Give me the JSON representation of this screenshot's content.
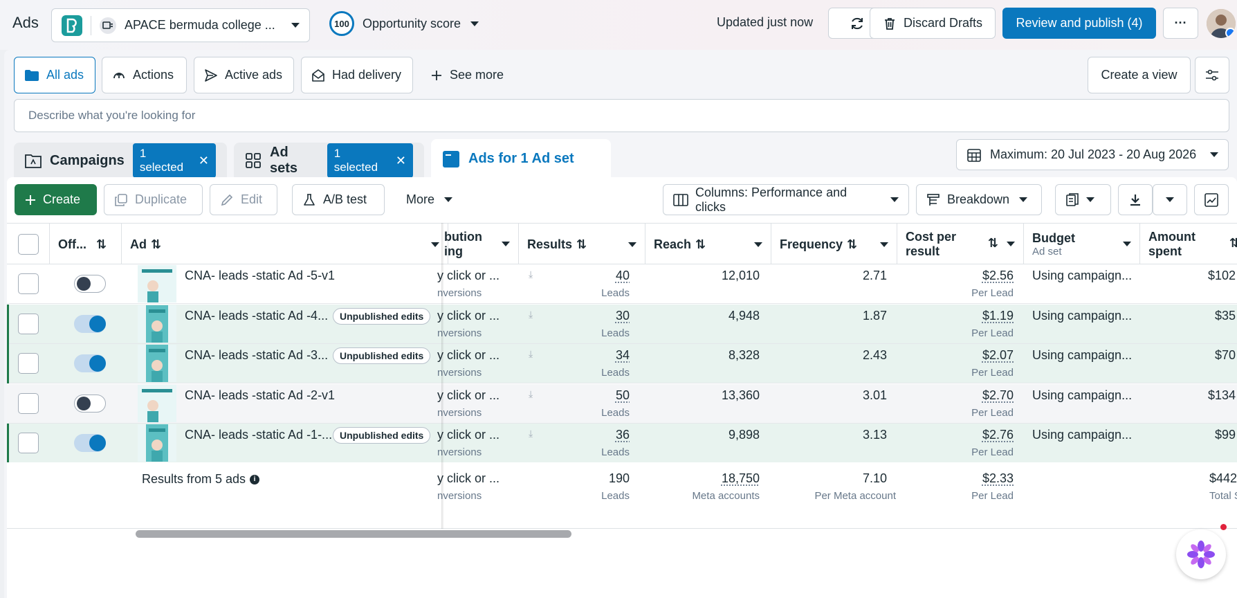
{
  "app": {
    "title": "Ads"
  },
  "account": {
    "name": "APACE bermuda college ..."
  },
  "opportunity": {
    "score": "100",
    "label": "Opportunity score"
  },
  "header": {
    "updated": "Updated just now",
    "discard_label": "Discard Drafts",
    "publish_label": "Review and publish (4)",
    "more_label": "···"
  },
  "filters": {
    "all_ads": "All ads",
    "actions": "Actions",
    "active_ads": "Active ads",
    "had_delivery": "Had delivery",
    "see_more": "See more",
    "create_view": "Create a view"
  },
  "search": {
    "placeholder": "Describe what you're looking for"
  },
  "tabs": {
    "campaigns": "Campaigns",
    "campaigns_selected": "1 selected",
    "adsets": "Ad sets",
    "adsets_selected": "1 selected",
    "ads": "Ads for 1 Ad set"
  },
  "date_range": "Maximum: 20 Jul 2023 - 20 Aug 2026",
  "toolbar": {
    "create": "Create",
    "duplicate": "Duplicate",
    "edit": "Edit",
    "ab_test": "A/B test",
    "more": "More",
    "columns": "Columns: Performance and clicks",
    "breakdown": "Breakdown"
  },
  "table": {
    "headers": {
      "offon": "Off...",
      "ad": "Ad",
      "attribution_1": "bution",
      "attribution_2": "ing",
      "results": "Results",
      "reach": "Reach",
      "frequency": "Frequency",
      "cost_1": "Cost per",
      "cost_2": "result",
      "budget": "Budget",
      "budget_sub": "Ad set",
      "amount_1": "Amount",
      "amount_2": "spent"
    },
    "rows": [
      {
        "name": "CNA- leads -static Ad -5-v1",
        "badge": "",
        "on": false,
        "attr1": "y click or ...",
        "attr2": "nversions",
        "results": "40",
        "results_unit": "Leads",
        "reach": "12,010",
        "frequency": "2.71",
        "cost": "$2.56",
        "cost_unit": "Per Lead",
        "budget": "Using campaign...",
        "amount": "$102"
      },
      {
        "name": "CNA- leads -static Ad -4...",
        "badge": "Unpublished edits",
        "on": true,
        "attr1": "y click or ...",
        "attr2": "nversions",
        "results": "30",
        "results_unit": "Leads",
        "reach": "4,948",
        "frequency": "1.87",
        "cost": "$1.19",
        "cost_unit": "Per Lead",
        "budget": "Using campaign...",
        "amount": "$35"
      },
      {
        "name": "CNA- leads -static Ad -3...",
        "badge": "Unpublished edits",
        "on": true,
        "attr1": "y click or ...",
        "attr2": "nversions",
        "results": "34",
        "results_unit": "Leads",
        "reach": "8,328",
        "frequency": "2.43",
        "cost": "$2.07",
        "cost_unit": "Per Lead",
        "budget": "Using campaign...",
        "amount": "$70"
      },
      {
        "name": "CNA- leads -static Ad -2-v1",
        "badge": "",
        "on": false,
        "attr1": "y click or ...",
        "attr2": "nversions",
        "results": "50",
        "results_unit": "Leads",
        "reach": "13,360",
        "frequency": "3.01",
        "cost": "$2.70",
        "cost_unit": "Per Lead",
        "budget": "Using campaign...",
        "amount": "$134"
      },
      {
        "name": "CNA- leads -static Ad -1-...",
        "badge": "Unpublished edits",
        "on": true,
        "attr1": "y click or ...",
        "attr2": "nversions",
        "results": "36",
        "results_unit": "Leads",
        "reach": "9,898",
        "frequency": "3.13",
        "cost": "$2.76",
        "cost_unit": "Per Lead",
        "budget": "Using campaign...",
        "amount": "$99"
      }
    ],
    "summary": {
      "label": "Results from 5 ads",
      "attr1": "y click or ...",
      "attr2": "nversions",
      "results": "190",
      "results_unit": "Leads",
      "reach": "18,750",
      "reach_unit": "Meta accounts",
      "frequency": "7.10",
      "frequency_unit": "Per Meta account",
      "cost": "$2.33",
      "cost_unit": "Per Lead",
      "amount": "$442",
      "amount_unit": "Total Sp"
    }
  },
  "colors": {
    "accent": "#0a78be",
    "create_green": "#1f7a4a",
    "edited_row": "#e8f3ef"
  }
}
